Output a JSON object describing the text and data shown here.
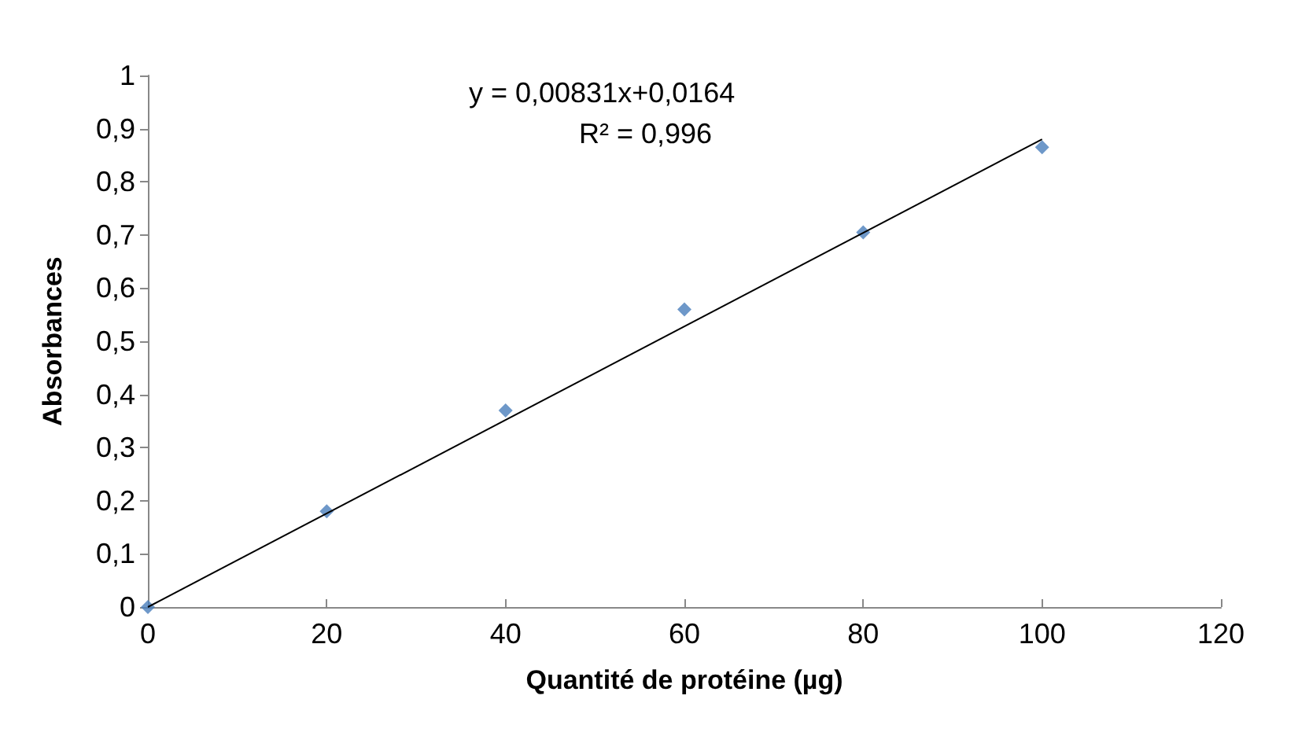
{
  "chart_data": {
    "type": "scatter",
    "xlabel": "Quantité de protéine (µg)",
    "ylabel": "Absorbances",
    "annotations": [
      "y = 0,00831x+0,0164",
      "R² = 0,996"
    ],
    "x": [
      0,
      20,
      40,
      60,
      80,
      100
    ],
    "series": [
      {
        "color": "#4a7ebb",
        "marker": "diamond",
        "values": [
          0,
          0.18,
          0.37,
          0.56,
          0.705,
          0.865
        ]
      },
      {
        "type": "line",
        "color": "#000000",
        "marker": "none",
        "x": [
          0,
          100
        ],
        "values": [
          0,
          0.88
        ]
      }
    ],
    "xlim": [
      0,
      120
    ],
    "xticks": [
      0,
      20,
      40,
      60,
      80,
      100,
      120
    ],
    "ylim": [
      0,
      1
    ],
    "yticks": [
      0,
      {
        "value": 0.1,
        "label": "0,1"
      },
      {
        "value": 0.2,
        "label": "0,2"
      },
      {
        "value": 0.3,
        "label": "0,3"
      },
      {
        "value": 0.4,
        "label": "0,4"
      },
      {
        "value": 0.5,
        "label": "0,5"
      },
      {
        "value": 0.6,
        "label": "0,6"
      },
      {
        "value": 0.7,
        "label": "0,7"
      },
      {
        "value": 0.8,
        "label": "0,8"
      },
      {
        "value": 0.9,
        "label": "0,9"
      },
      1
    ]
  }
}
